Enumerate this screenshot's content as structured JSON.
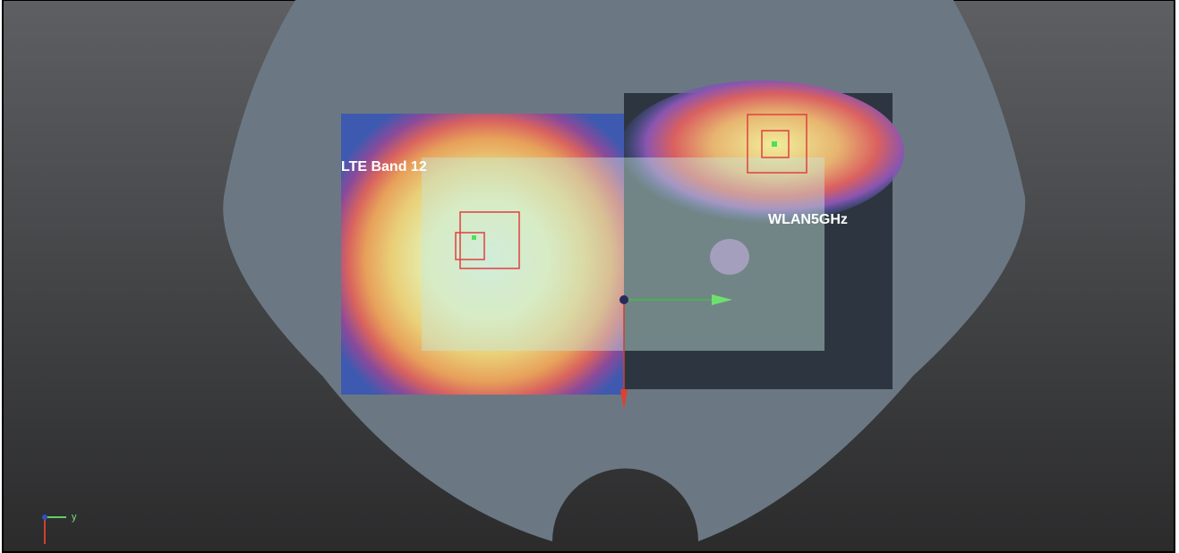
{
  "labels": {
    "lte": "LTE Band 12",
    "wlan": "WLAN5GHz"
  },
  "axes_triad": {
    "y": "y"
  }
}
